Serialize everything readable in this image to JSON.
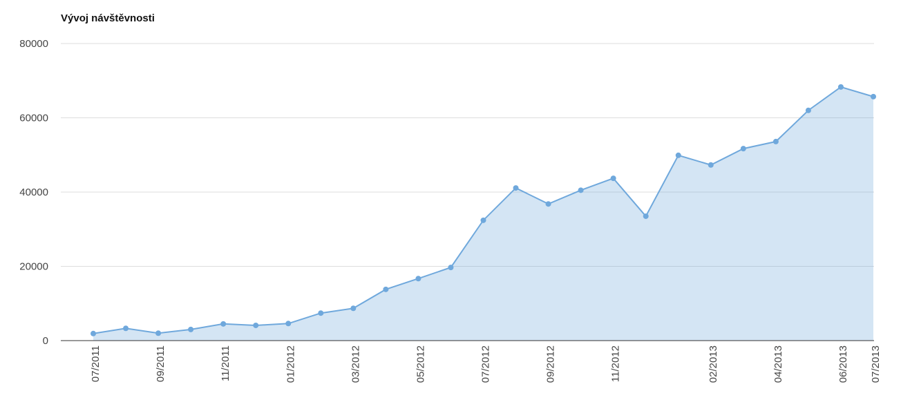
{
  "chart_data": {
    "type": "area",
    "title": "Vývoj návštěvnosti",
    "categories": [
      "07/2011",
      null,
      "09/2011",
      null,
      "11/2011",
      null,
      "01/2012",
      null,
      "03/2012",
      null,
      "05/2012",
      null,
      "07/2012",
      null,
      "09/2012",
      null,
      "11/2012",
      null,
      null,
      "02/2013",
      null,
      "04/2013",
      null,
      "06/2013",
      "07/2013"
    ],
    "series": [
      {
        "color": "#6fa8dc",
        "values": [
          1900,
          3300,
          2000,
          3000,
          4500,
          4100,
          4600,
          7400,
          8700,
          13800,
          16700,
          19700,
          32400,
          41100,
          36800,
          40500,
          43700,
          33500,
          49900,
          47300,
          51700,
          53600,
          62000,
          68300,
          65700
        ]
      }
    ],
    "ylim": [
      0,
      80000
    ],
    "yticks": [
      0,
      20000,
      40000,
      60000,
      80000
    ],
    "grid": true
  }
}
